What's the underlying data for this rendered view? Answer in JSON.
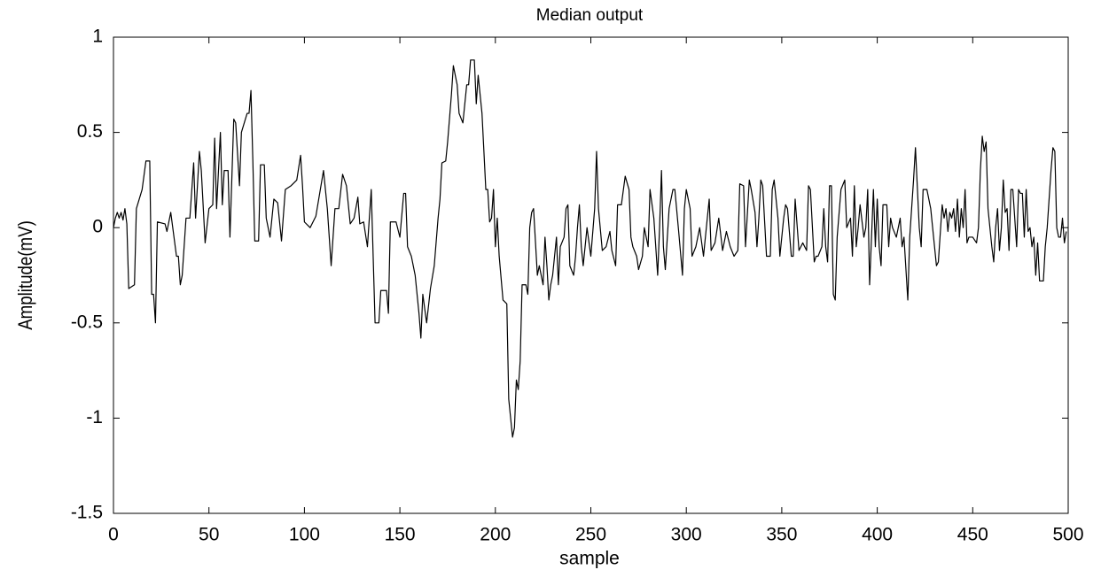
{
  "chart_data": {
    "type": "line",
    "title": "Median output",
    "x_label": "sample",
    "y_label": "Amplitude(mV)",
    "color": "#000000",
    "xlim": [
      0,
      500
    ],
    "ylim": [
      -1.5,
      1
    ],
    "xticks": [
      0,
      50,
      100,
      150,
      200,
      250,
      300,
      350,
      400,
      450,
      500
    ],
    "yticks": [
      -1.5,
      -1,
      -0.5,
      0,
      0.5,
      1
    ],
    "x": [
      0,
      1,
      2,
      3,
      4,
      5,
      6,
      7,
      8,
      11,
      12,
      15,
      17,
      19,
      20,
      21,
      22,
      23,
      27,
      28,
      30,
      33,
      34,
      35,
      36,
      38,
      40,
      42,
      43,
      45,
      46,
      48,
      50,
      52,
      53,
      54,
      56,
      57,
      58,
      60,
      61,
      63,
      64,
      66,
      67,
      70,
      71,
      72,
      73,
      74,
      76,
      77,
      79,
      80,
      82,
      84,
      86,
      88,
      90,
      93,
      96,
      98,
      99,
      100,
      103,
      106,
      110,
      112,
      114,
      116,
      118,
      120,
      122,
      124,
      126,
      128,
      129,
      131,
      133,
      135,
      137,
      139,
      140,
      143,
      144,
      145,
      148,
      150,
      152,
      153,
      154,
      156,
      158,
      160,
      161,
      162,
      164,
      166,
      168,
      170,
      171,
      172,
      174,
      175,
      177,
      178,
      180,
      181,
      183,
      185,
      186,
      187,
      189,
      190,
      191,
      193,
      194,
      195,
      196,
      197,
      198,
      199,
      200,
      201,
      202,
      204,
      206,
      207,
      209,
      210,
      211,
      212,
      213,
      214,
      216,
      217,
      218,
      219,
      220,
      222,
      223,
      225,
      226,
      227,
      228,
      229,
      230,
      232,
      233,
      234,
      236,
      237,
      238,
      239,
      241,
      242,
      243,
      244,
      245,
      246,
      248,
      250,
      252,
      253,
      254,
      256,
      258,
      260,
      261,
      263,
      264,
      266,
      268,
      270,
      271,
      272,
      274,
      275,
      277,
      278,
      280,
      281,
      283,
      285,
      286,
      287,
      288,
      289,
      291,
      293,
      294,
      296,
      298,
      299,
      300,
      302,
      303,
      305,
      307,
      309,
      311,
      312,
      313,
      315,
      317,
      319,
      321,
      323,
      325,
      327,
      328,
      330,
      331,
      333,
      334,
      336,
      337,
      338,
      339,
      340,
      342,
      344,
      345,
      346,
      348,
      349,
      351,
      352,
      353,
      355,
      356,
      357,
      359,
      361,
      363,
      364,
      365,
      367,
      368,
      369,
      371,
      372,
      373,
      374,
      375,
      376,
      377,
      378,
      379,
      381,
      383,
      384,
      386,
      387,
      388,
      389,
      390,
      391,
      393,
      394,
      395,
      396,
      397,
      398,
      399,
      400,
      401,
      402,
      403,
      405,
      406,
      407,
      408,
      410,
      412,
      413,
      414,
      416,
      417,
      418,
      419,
      420,
      422,
      423,
      424,
      426,
      428,
      430,
      431,
      432,
      434,
      435,
      436,
      437,
      438,
      439,
      440,
      441,
      442,
      443,
      444,
      445,
      446,
      447,
      448,
      450,
      452,
      453,
      454,
      455,
      456,
      457,
      458,
      459,
      460,
      461,
      462,
      463,
      464,
      465,
      466,
      467,
      468,
      469,
      470,
      471,
      472,
      473,
      474,
      475,
      476,
      477,
      478,
      479,
      480,
      481,
      482,
      483,
      484,
      485,
      487,
      488,
      489,
      490,
      491,
      492,
      493,
      494,
      495,
      496,
      497,
      498,
      499
    ],
    "values": [
      0,
      0.05,
      0.08,
      0.05,
      0.08,
      0.04,
      0.1,
      0.02,
      -0.32,
      -0.3,
      0.1,
      0.2,
      0.35,
      0.35,
      -0.35,
      -0.35,
      -0.5,
      0.03,
      0.02,
      -0.02,
      0.08,
      -0.15,
      -0.15,
      -0.3,
      -0.25,
      0.05,
      0.05,
      0.34,
      0.05,
      0.4,
      0.3,
      -0.08,
      0.1,
      0.12,
      0.47,
      0.1,
      0.5,
      0.12,
      0.3,
      0.3,
      -0.05,
      0.57,
      0.55,
      0.22,
      0.5,
      0.6,
      0.6,
      0.72,
      0.35,
      -0.07,
      -0.07,
      0.33,
      0.33,
      0.05,
      -0.05,
      0.15,
      0.13,
      -0.07,
      0.2,
      0.22,
      0.25,
      0.38,
      0.22,
      0.03,
      0.0,
      0.06,
      0.3,
      0.1,
      -0.2,
      0.1,
      0.1,
      0.28,
      0.22,
      0.02,
      0.05,
      0.16,
      0.02,
      0.03,
      -0.1,
      0.2,
      -0.5,
      -0.5,
      -0.33,
      -0.33,
      -0.45,
      0.03,
      0.03,
      -0.05,
      0.18,
      0.18,
      -0.1,
      -0.15,
      -0.25,
      -0.45,
      -0.58,
      -0.35,
      -0.5,
      -0.32,
      -0.2,
      0.05,
      0.15,
      0.34,
      0.35,
      0.45,
      0.7,
      0.85,
      0.75,
      0.6,
      0.55,
      0.75,
      0.75,
      0.88,
      0.88,
      0.65,
      0.8,
      0.6,
      0.4,
      0.2,
      0.2,
      0.03,
      0.05,
      0.2,
      -0.1,
      0.05,
      -0.15,
      -0.38,
      -0.4,
      -0.9,
      -1.1,
      -1.05,
      -0.8,
      -0.85,
      -0.7,
      -0.3,
      -0.3,
      -0.35,
      0.0,
      0.08,
      0.1,
      -0.25,
      -0.2,
      -0.3,
      -0.05,
      -0.2,
      -0.38,
      -0.3,
      -0.25,
      -0.05,
      -0.3,
      -0.1,
      -0.05,
      0.1,
      0.12,
      -0.2,
      -0.25,
      -0.15,
      0.0,
      0.12,
      -0.1,
      -0.2,
      0.0,
      -0.15,
      0.1,
      0.4,
      0.1,
      -0.12,
      -0.1,
      -0.02,
      -0.12,
      -0.2,
      0.12,
      0.12,
      0.27,
      0.2,
      -0.05,
      -0.1,
      -0.15,
      -0.22,
      -0.15,
      0.0,
      -0.1,
      0.2,
      0.05,
      -0.25,
      0.0,
      0.3,
      -0.1,
      -0.22,
      0.1,
      0.2,
      0.2,
      -0.02,
      -0.25,
      0.1,
      0.2,
      0.1,
      -0.15,
      -0.1,
      0.0,
      -0.15,
      0.05,
      0.15,
      -0.12,
      -0.08,
      0.05,
      -0.12,
      -0.02,
      -0.1,
      -0.15,
      -0.12,
      0.23,
      0.22,
      -0.1,
      0.25,
      0.2,
      0.08,
      -0.1,
      0.05,
      0.25,
      0.22,
      -0.15,
      -0.15,
      0.2,
      0.25,
      0.05,
      -0.15,
      0.05,
      0.12,
      0.1,
      -0.15,
      -0.15,
      0.15,
      -0.12,
      -0.08,
      -0.12,
      0.22,
      0.2,
      -0.18,
      -0.15,
      -0.15,
      -0.1,
      0.1,
      -0.1,
      -0.18,
      0.22,
      0.22,
      -0.35,
      -0.38,
      -0.05,
      0.2,
      0.25,
      0.0,
      0.05,
      -0.15,
      0.22,
      -0.1,
      0.0,
      0.12,
      -0.05,
      0.0,
      0.2,
      -0.3,
      -0.05,
      0.2,
      -0.1,
      0.15,
      -0.1,
      -0.2,
      0.12,
      0.12,
      -0.1,
      0.05,
      0.0,
      -0.05,
      0.05,
      -0.1,
      -0.05,
      -0.38,
      -0.05,
      0.1,
      0.25,
      0.42,
      0.0,
      -0.1,
      0.2,
      0.2,
      0.1,
      -0.1,
      -0.2,
      -0.18,
      0.12,
      0.05,
      0.1,
      -0.02,
      0.08,
      0.05,
      0.1,
      -0.02,
      0.15,
      -0.05,
      0.1,
      0.0,
      0.2,
      -0.08,
      -0.05,
      -0.05,
      -0.08,
      0.0,
      0.3,
      0.48,
      0.4,
      0.45,
      0.1,
      0.0,
      -0.1,
      -0.18,
      0.0,
      0.1,
      -0.12,
      0.0,
      0.25,
      0.08,
      0.1,
      -0.12,
      0.2,
      0.2,
      0.05,
      -0.1,
      0.2,
      0.18,
      0.18,
      -0.05,
      0.2,
      -0.02,
      0.0,
      -0.1,
      -0.05,
      -0.25,
      -0.08,
      -0.28,
      -0.28,
      -0.1,
      0.0,
      0.15,
      0.3,
      0.42,
      0.4,
      0.0,
      -0.05,
      -0.05,
      0.05,
      -0.08,
      -0.02
    ]
  }
}
